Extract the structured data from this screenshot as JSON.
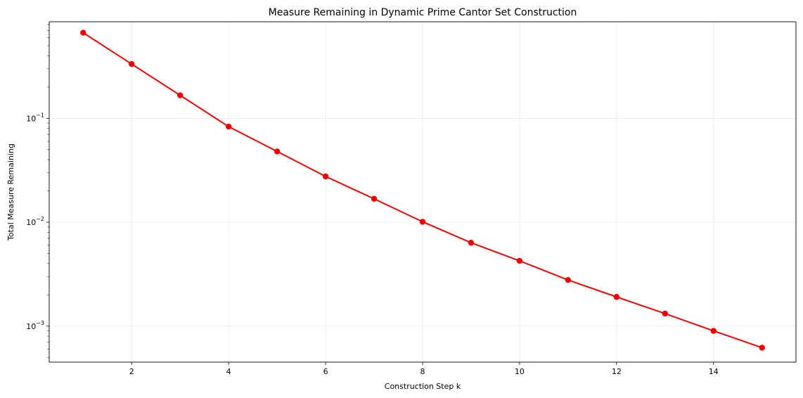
{
  "chart_data": {
    "type": "line",
    "title": "Measure Remaining in Dynamic Prime Cantor Set Construction",
    "xlabel": "Construction Step k",
    "ylabel": "Total Measure Remaining",
    "y_scale": "log",
    "grid": true,
    "xlim": [
      0.3,
      15.7
    ],
    "ylim": [
      0.00045,
      0.85
    ],
    "x_ticks": [
      2,
      4,
      6,
      8,
      10,
      12,
      14
    ],
    "y_ticks": [
      {
        "value": 0.001,
        "base": "10",
        "exp": "−3"
      },
      {
        "value": 0.01,
        "base": "10",
        "exp": "−2"
      },
      {
        "value": 0.1,
        "base": "10",
        "exp": "−1"
      }
    ],
    "color": "#ee0000",
    "series": [
      {
        "x": [
          1,
          2,
          3,
          4,
          5,
          6,
          7,
          8,
          9,
          10,
          11,
          12,
          13,
          14,
          15
        ],
        "y": [
          0.6667,
          0.3333,
          0.1667,
          0.0833,
          0.048,
          0.0276,
          0.0168,
          0.0101,
          0.00635,
          0.00425,
          0.00278,
          0.00191,
          0.00132,
          0.0009,
          0.00062
        ]
      }
    ]
  }
}
